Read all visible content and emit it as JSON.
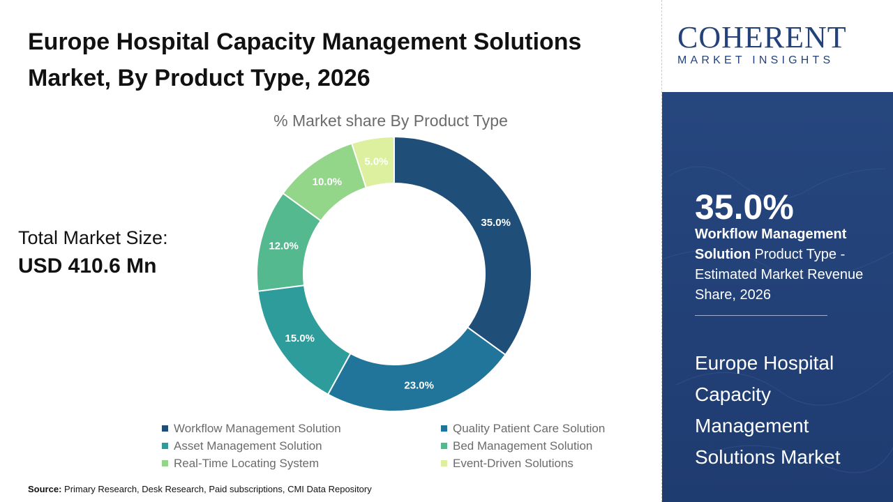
{
  "header": {
    "title_line1": "Europe Hospital Capacity Management Solutions",
    "title_line2": "Market, By Product Type, 2026"
  },
  "market_size": {
    "label": "Total Market Size:",
    "value": "USD 410.6 Mn"
  },
  "chart_data": {
    "type": "pie",
    "subtype": "donut",
    "title": "% Market share By Product Type",
    "unit": "%",
    "categories": [
      "Workflow Management Solution",
      "Quality Patient Care Solution",
      "Asset Management Solution",
      "Bed Management Solution",
      "Real-Time Locating System",
      "Event-Driven Solutions"
    ],
    "values": [
      35.0,
      23.0,
      15.0,
      12.0,
      10.0,
      5.0
    ],
    "labels": [
      "35.0%",
      "23.0%",
      "15.0%",
      "12.0%",
      "10.0%",
      "5.0%"
    ],
    "colors": [
      "#1f4e79",
      "#21759b",
      "#2e9c9a",
      "#55b98f",
      "#93d68a",
      "#dcf0a0"
    ],
    "label_colors": [
      "#ffffff",
      "#ffffff",
      "#ffffff",
      "#ffffff",
      "#ffffff",
      "#ffffff"
    ],
    "legend_position": "bottom"
  },
  "source": {
    "label": "Source:",
    "text": "Primary Research, Desk Research, Paid subscriptions, CMI Data Repository"
  },
  "brand": {
    "name": "COHERENT",
    "tagline": "MARKET INSIGHTS",
    "color": "#24427a"
  },
  "highlight": {
    "percent": "35.0%",
    "segment": "Workflow Management Solution",
    "desc": " Product Type - Estimated Market Revenue Share, 2026",
    "market_name": "Europe Hospital Capacity Management Solutions Market"
  }
}
